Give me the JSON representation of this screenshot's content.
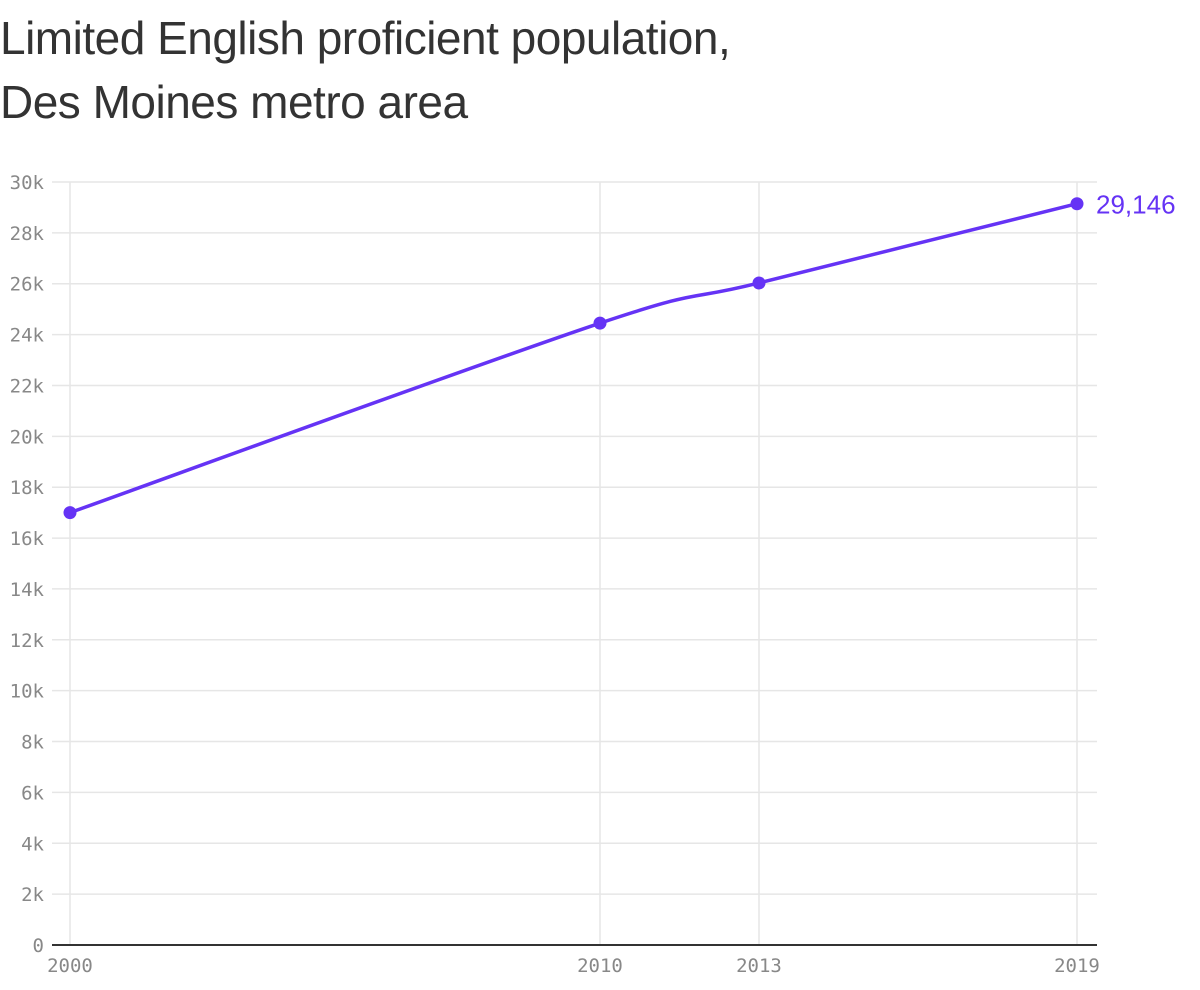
{
  "title_lines": [
    "Limited English proficient population,",
    "Des Moines metro area"
  ],
  "colors": {
    "line": "#6533f5",
    "grid": "#e6e6e6",
    "axis": "#333333",
    "tick_text": "#888888",
    "title": "#333333"
  },
  "chart_data": {
    "type": "line",
    "title": "Limited English proficient population, Des Moines metro area",
    "xlabel": "",
    "ylabel": "",
    "x": [
      2000,
      2010,
      2013,
      2019
    ],
    "series": [
      {
        "name": "Limited English proficient population",
        "values": [
          17000,
          24450,
          26030,
          29146
        ]
      }
    ],
    "x_ticks": [
      "2000",
      "2010",
      "2013",
      "2019"
    ],
    "y_ticks": [
      "0",
      "2k",
      "4k",
      "6k",
      "8k",
      "10k",
      "12k",
      "14k",
      "16k",
      "18k",
      "20k",
      "22k",
      "24k",
      "26k",
      "28k",
      "30k"
    ],
    "ylim": [
      0,
      30000
    ],
    "xlim": [
      2000,
      2019
    ],
    "grid": true,
    "annotations": [
      {
        "x": 2019,
        "y": 29146,
        "text": "29,146"
      }
    ],
    "legend": null
  }
}
